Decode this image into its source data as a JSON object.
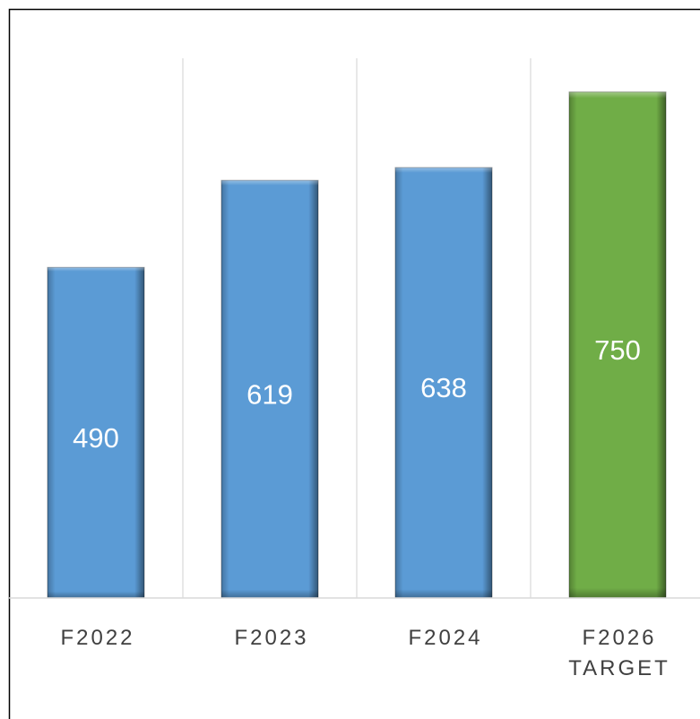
{
  "chart_data": {
    "type": "bar",
    "categories": [
      "F2022",
      "F2023",
      "F2024",
      "F2026 TARGET"
    ],
    "values": [
      490,
      619,
      638,
      750
    ],
    "colors": [
      "#5b9bd5",
      "#5b9bd5",
      "#5b9bd5",
      "#70ad47"
    ],
    "ylim": [
      0,
      800
    ]
  }
}
